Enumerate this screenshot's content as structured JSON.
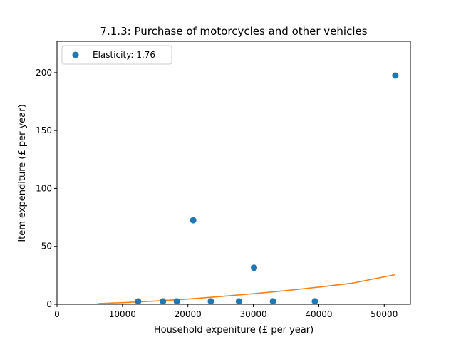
{
  "chart_data": {
    "type": "scatter",
    "title": "7.1.3: Purchase of motorcycles and other vehicles",
    "xlabel": "Household expeniture (£ per year)",
    "ylabel": "Item expenditure (£ per year)",
    "xlim": [
      0,
      54000
    ],
    "ylim": [
      0,
      227
    ],
    "x_ticks": [
      0,
      10000,
      20000,
      30000,
      40000,
      50000
    ],
    "y_ticks": [
      0,
      50,
      100,
      150,
      200
    ],
    "x_tick_labels": [
      "0",
      "10000",
      "20000",
      "30000",
      "40000",
      "50000"
    ],
    "y_tick_labels": [
      "0",
      "50",
      "100",
      "150",
      "200"
    ],
    "grid": false,
    "legend_position": "top-left",
    "series": [
      {
        "name": "Elasticity: 1.76",
        "kind": "scatter",
        "color": "#1f77b4",
        "x": [
          12400,
          16200,
          18300,
          20800,
          23500,
          27800,
          30100,
          33000,
          39400,
          51700
        ],
        "y": [
          2.5,
          2.5,
          2.5,
          72.5,
          2.5,
          2.5,
          31.5,
          2.5,
          2.5,
          197.5
        ]
      },
      {
        "kind": "line",
        "color": "#ff7f0e",
        "x": [
          6200,
          10000,
          15000,
          20000,
          25000,
          30000,
          35000,
          40000,
          45000,
          51700
        ],
        "y": [
          0.6,
          1.4,
          2.8,
          4.5,
          6.7,
          9.1,
          11.8,
          14.8,
          18.1,
          25.5
        ]
      }
    ]
  }
}
